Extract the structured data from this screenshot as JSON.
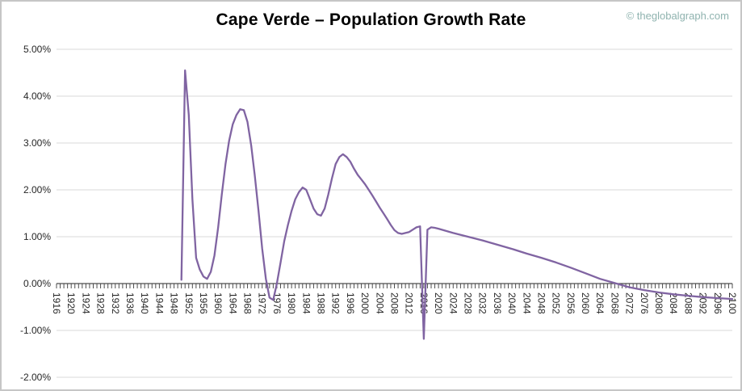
{
  "page": {
    "title": "Cape Verde – Population Growth Rate",
    "watermark": "© theglobalgraph.com"
  },
  "chart_data": {
    "type": "line",
    "title": "Cape Verde – Population Growth Rate",
    "xlabel": "",
    "ylabel": "",
    "legend": "none",
    "grid": true,
    "xaxis": {
      "start": 1916,
      "end": 2100,
      "label_step": 4,
      "tick_step": 1
    },
    "yaxis": {
      "min": -2,
      "max": 5,
      "step": 1,
      "format": "percent2"
    },
    "colors": {
      "line": "#8064A2",
      "grid": "#d9d9d9",
      "axis": "#4d4d4d",
      "tick": "#4d4d4d",
      "label": "#262626",
      "border": "#c6c6c6",
      "watermark": "#8fb3af",
      "title": "#000000"
    },
    "series": [
      {
        "name": "Population Growth Rate",
        "points": [
          [
            1950,
            0.08
          ],
          [
            1951,
            4.55
          ],
          [
            1952,
            3.6
          ],
          [
            1953,
            1.8
          ],
          [
            1954,
            0.55
          ],
          [
            1955,
            0.3
          ],
          [
            1956,
            0.15
          ],
          [
            1957,
            0.1
          ],
          [
            1958,
            0.25
          ],
          [
            1959,
            0.6
          ],
          [
            1960,
            1.2
          ],
          [
            1961,
            1.9
          ],
          [
            1962,
            2.55
          ],
          [
            1963,
            3.05
          ],
          [
            1964,
            3.4
          ],
          [
            1965,
            3.6
          ],
          [
            1966,
            3.72
          ],
          [
            1967,
            3.7
          ],
          [
            1968,
            3.45
          ],
          [
            1969,
            2.95
          ],
          [
            1970,
            2.3
          ],
          [
            1971,
            1.55
          ],
          [
            1972,
            0.75
          ],
          [
            1973,
            0.1
          ],
          [
            1974,
            -0.3
          ],
          [
            1975,
            -0.35
          ],
          [
            1976,
            0.0
          ],
          [
            1977,
            0.45
          ],
          [
            1978,
            0.9
          ],
          [
            1979,
            1.25
          ],
          [
            1980,
            1.55
          ],
          [
            1981,
            1.8
          ],
          [
            1982,
            1.95
          ],
          [
            1983,
            2.05
          ],
          [
            1984,
            2.0
          ],
          [
            1985,
            1.8
          ],
          [
            1986,
            1.6
          ],
          [
            1987,
            1.48
          ],
          [
            1988,
            1.45
          ],
          [
            1989,
            1.6
          ],
          [
            1990,
            1.9
          ],
          [
            1991,
            2.25
          ],
          [
            1992,
            2.55
          ],
          [
            1993,
            2.7
          ],
          [
            1994,
            2.76
          ],
          [
            1995,
            2.7
          ],
          [
            1996,
            2.6
          ],
          [
            1997,
            2.45
          ],
          [
            1998,
            2.32
          ],
          [
            1999,
            2.22
          ],
          [
            2000,
            2.12
          ],
          [
            2001,
            2.0
          ],
          [
            2002,
            1.88
          ],
          [
            2003,
            1.75
          ],
          [
            2004,
            1.62
          ],
          [
            2005,
            1.5
          ],
          [
            2006,
            1.38
          ],
          [
            2007,
            1.25
          ],
          [
            2008,
            1.14
          ],
          [
            2009,
            1.08
          ],
          [
            2010,
            1.06
          ],
          [
            2011,
            1.08
          ],
          [
            2012,
            1.1
          ],
          [
            2013,
            1.15
          ],
          [
            2014,
            1.2
          ],
          [
            2015,
            1.22
          ],
          [
            2016,
            -1.18
          ],
          [
            2017,
            1.15
          ],
          [
            2018,
            1.2
          ],
          [
            2019,
            1.19
          ],
          [
            2020,
            1.17
          ],
          [
            2024,
            1.08
          ],
          [
            2028,
            1.0
          ],
          [
            2032,
            0.92
          ],
          [
            2036,
            0.83
          ],
          [
            2040,
            0.74
          ],
          [
            2044,
            0.64
          ],
          [
            2048,
            0.55
          ],
          [
            2052,
            0.45
          ],
          [
            2056,
            0.34
          ],
          [
            2060,
            0.22
          ],
          [
            2064,
            0.1
          ],
          [
            2068,
            0.01
          ],
          [
            2072,
            -0.08
          ],
          [
            2076,
            -0.14
          ],
          [
            2080,
            -0.19
          ],
          [
            2084,
            -0.23
          ],
          [
            2088,
            -0.26
          ],
          [
            2092,
            -0.29
          ],
          [
            2096,
            -0.31
          ],
          [
            2100,
            -0.33
          ]
        ]
      }
    ]
  }
}
